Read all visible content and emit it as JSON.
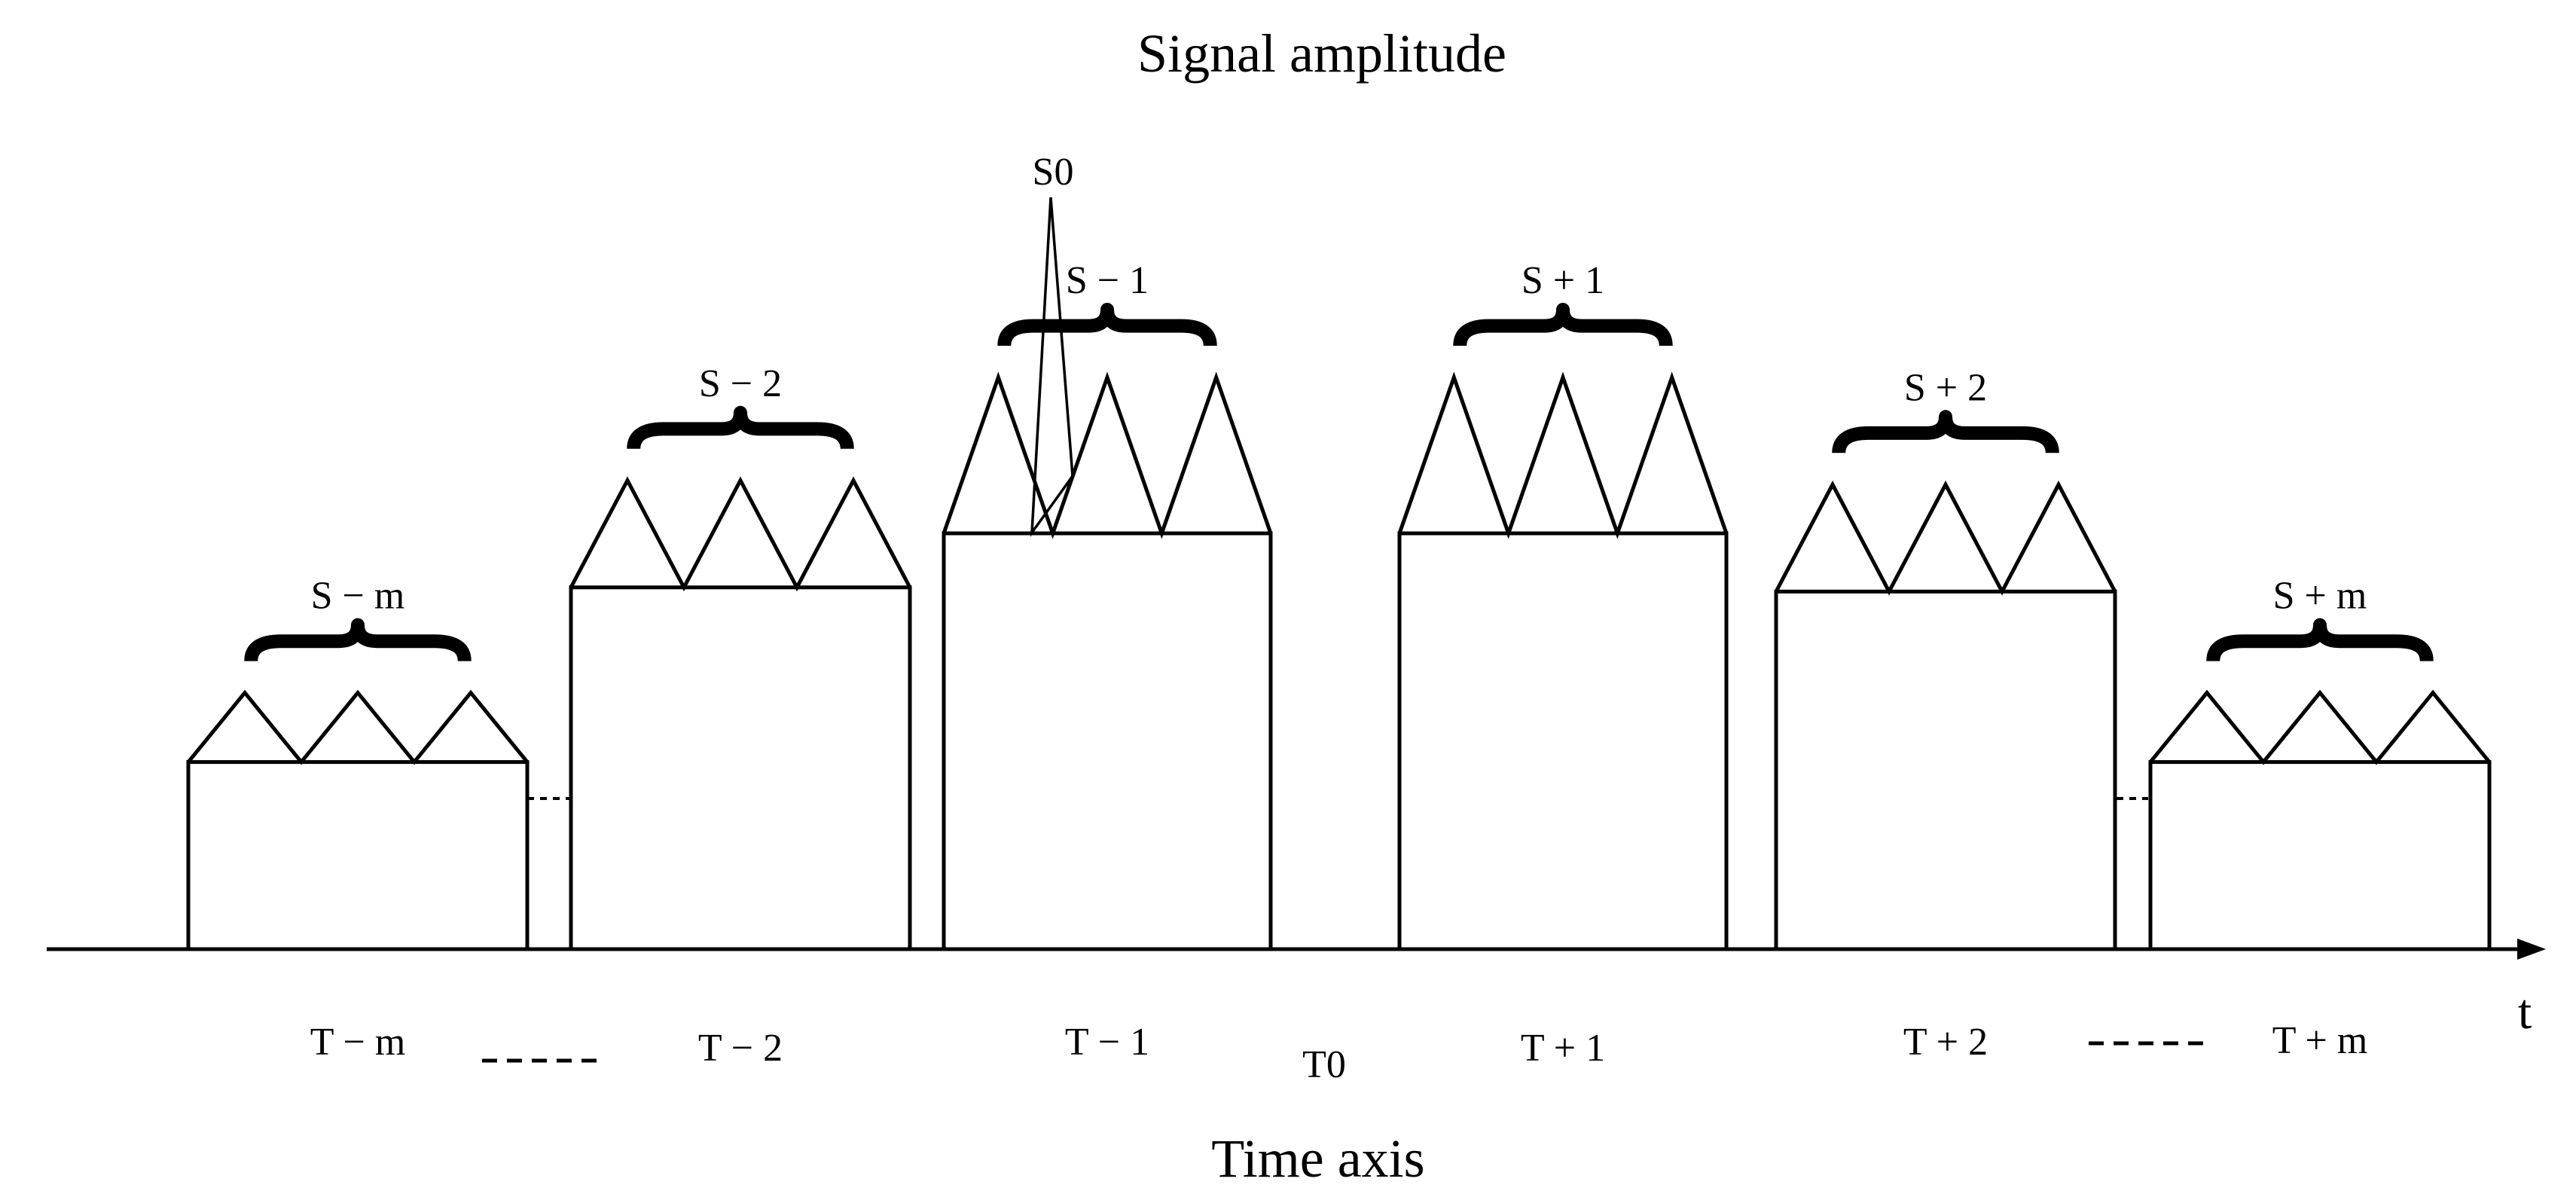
{
  "title": "Signal amplitude",
  "x_axis_label": "Time axis",
  "axis_symbol": "t",
  "origin_label": "T0",
  "peak_label": "S0",
  "colors": {
    "stroke": "#000000",
    "background": "#ffffff"
  },
  "blocks": [
    {
      "time_label": "T − m",
      "segment_label": "S − m",
      "level": 0.45
    },
    {
      "time_label": "T − 2",
      "segment_label": "S − 2",
      "level": 0.87
    },
    {
      "time_label": "T − 1",
      "segment_label": "S − 1",
      "level": 1.0
    },
    {
      "time_label": "T + 1",
      "segment_label": "S + 1",
      "level": 1.0
    },
    {
      "time_label": "T + 2",
      "segment_label": "S + 2",
      "level": 0.86
    },
    {
      "time_label": "T + m",
      "segment_label": "S + m",
      "level": 0.45
    }
  ]
}
